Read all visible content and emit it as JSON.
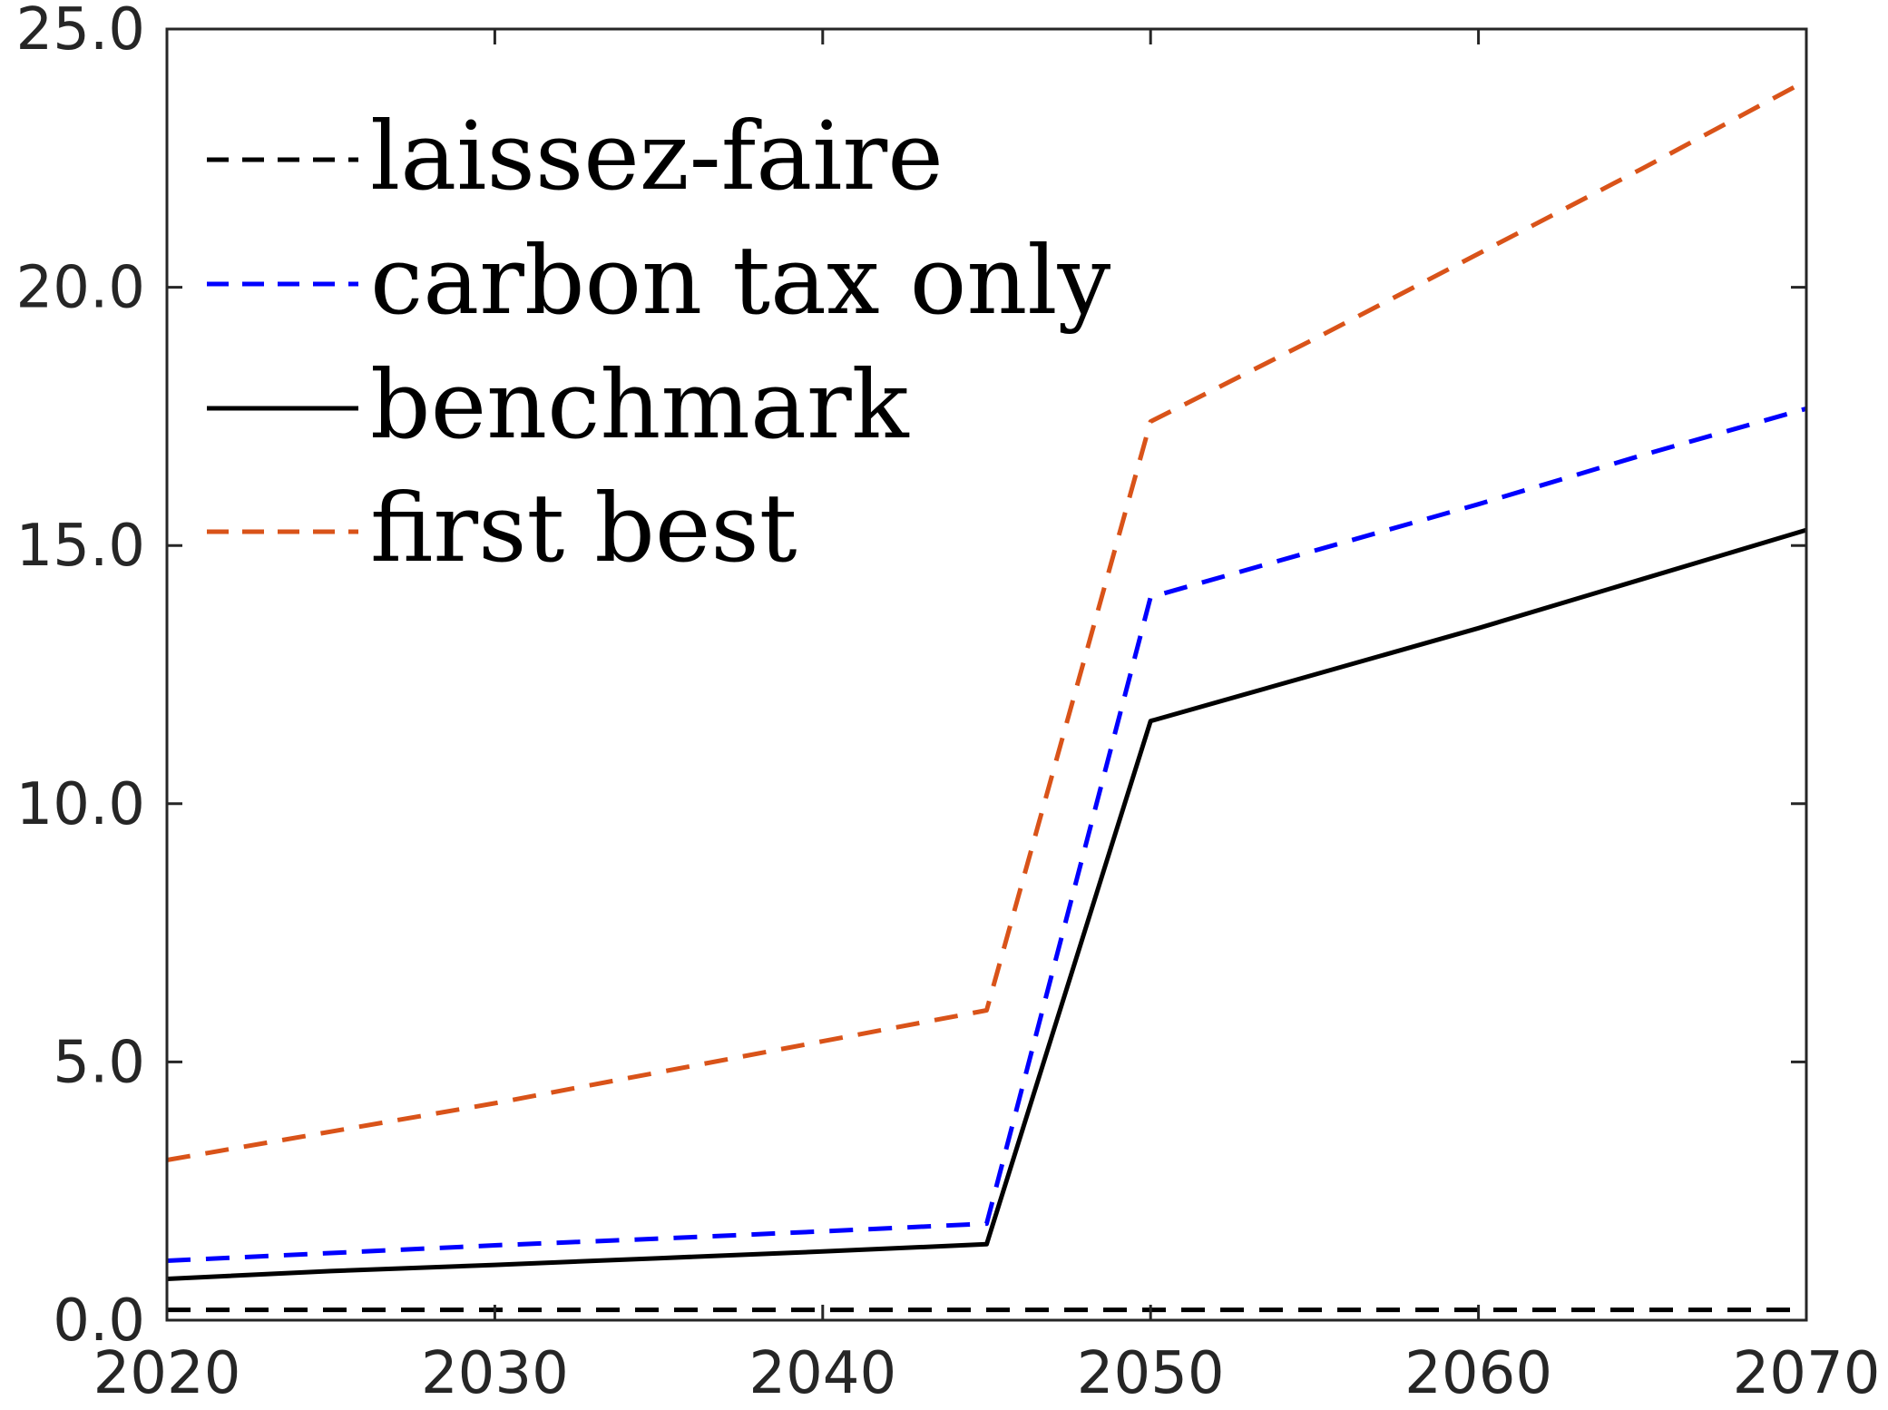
{
  "chart_data": {
    "type": "line",
    "title": "",
    "xlabel": "",
    "ylabel": "",
    "xlim": [
      2020,
      2070
    ],
    "ylim": [
      0,
      25
    ],
    "xticks": [
      2020,
      2030,
      2040,
      2050,
      2060,
      2070
    ],
    "xtick_labels": [
      "2020",
      "2030",
      "2040",
      "2050",
      "2060",
      "2070"
    ],
    "yticks": [
      0,
      5,
      10,
      15,
      20,
      25
    ],
    "ytick_labels": [
      "0.0",
      "5.0",
      "10.0",
      "15.0",
      "20.0",
      "25.0"
    ],
    "grid": false,
    "legend_position": "top-left",
    "x": [
      2020,
      2025,
      2030,
      2035,
      2040,
      2045,
      2050,
      2055,
      2060,
      2065,
      2070
    ],
    "series": [
      {
        "name": "laissez-faire",
        "color": "#000000",
        "style": "dashed",
        "values": [
          0.2,
          0.2,
          0.2,
          0.2,
          0.2,
          0.2,
          0.2,
          0.2,
          0.2,
          0.2,
          0.2
        ]
      },
      {
        "name": "carbon tax only",
        "color": "#0000ff",
        "style": "dashed",
        "values": [
          1.15,
          1.3,
          1.45,
          1.58,
          1.72,
          1.87,
          14.0,
          14.9,
          15.8,
          16.75,
          17.65
        ]
      },
      {
        "name": "benchmark",
        "color": "#000000",
        "style": "solid",
        "values": [
          0.8,
          0.95,
          1.07,
          1.2,
          1.33,
          1.47,
          11.6,
          12.5,
          13.4,
          14.35,
          15.3
        ]
      },
      {
        "name": "first best",
        "color": "#d95319",
        "style": "dashed",
        "values": [
          3.1,
          3.65,
          4.2,
          4.8,
          5.4,
          6.0,
          17.4,
          19.0,
          20.65,
          22.3,
          24.0
        ]
      }
    ]
  }
}
